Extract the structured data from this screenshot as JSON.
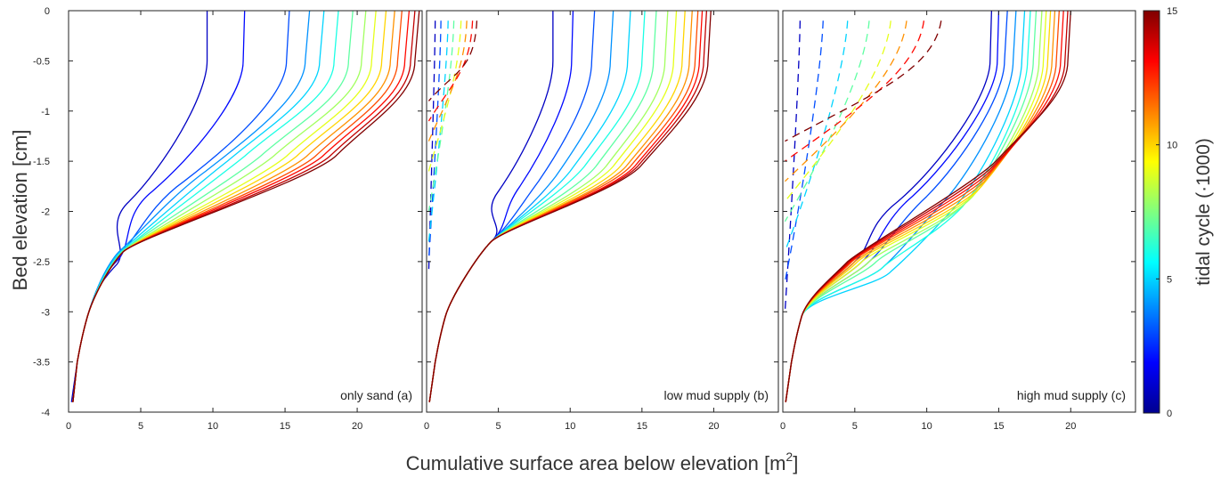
{
  "chart_data": {
    "type": "line",
    "xlabel": "Cumulative surface area below elevation [m",
    "xlabel_superscript": "2",
    "xlabel_close": "]",
    "ylabel": "Bed elevation [cm]",
    "xlim": [
      0,
      24.5
    ],
    "ylim": [
      -4,
      0
    ],
    "x_ticks": [
      0,
      5,
      10,
      15,
      20
    ],
    "y_ticks": [
      0,
      -0.5,
      -1,
      -1.5,
      -2,
      -2.5,
      -3,
      -3.5,
      -4
    ],
    "colorbar": {
      "label": "tidal cycle (·1000)",
      "range": [
        0,
        15
      ],
      "ticks": [
        0,
        5,
        10,
        15
      ],
      "colormap": "jet"
    },
    "panels": [
      {
        "label": "only sand (a)",
        "solid": [
          {
            "cycle": 1,
            "x_top": 9.6,
            "x_break": 9.6,
            "x_mid": 4.2,
            "y_mid": -1.9,
            "x_cross": 3.2,
            "y_cross": -2.55,
            "x_bottom": 0.2
          },
          {
            "cycle": 2,
            "x_top": 12.2,
            "x_break": 12.1,
            "x_mid": 5.8,
            "y_mid": -1.8,
            "x_cross": 3.3,
            "y_cross": -2.5,
            "x_bottom": 0.3
          },
          {
            "cycle": 3,
            "x_top": 15.3,
            "x_break": 15.1,
            "x_mid": 8.0,
            "y_mid": -1.7,
            "x_cross": 3.4,
            "y_cross": -2.45,
            "x_bottom": 0.3
          },
          {
            "cycle": 4,
            "x_top": 16.7,
            "x_break": 16.4,
            "x_mid": 9.5,
            "y_mid": -1.6,
            "x_cross": 3.5,
            "y_cross": -2.4,
            "x_bottom": 0.3
          },
          {
            "cycle": 5,
            "x_top": 17.7,
            "x_break": 17.4,
            "x_mid": 11.0,
            "y_mid": -1.5,
            "x_cross": 3.6,
            "y_cross": -2.4,
            "x_bottom": 0.3
          },
          {
            "cycle": 6,
            "x_top": 18.7,
            "x_break": 18.4,
            "x_mid": 12.2,
            "y_mid": -1.45,
            "x_cross": 3.7,
            "y_cross": -2.4,
            "x_bottom": 0.3
          },
          {
            "cycle": 7,
            "x_top": 19.7,
            "x_break": 19.4,
            "x_mid": 13.3,
            "y_mid": -1.45,
            "x_cross": 3.7,
            "y_cross": -2.4,
            "x_bottom": 0.3
          },
          {
            "cycle": 8,
            "x_top": 20.6,
            "x_break": 20.3,
            "x_mid": 14.2,
            "y_mid": -1.45,
            "x_cross": 3.8,
            "y_cross": -2.4,
            "x_bottom": 0.3
          },
          {
            "cycle": 9,
            "x_top": 21.3,
            "x_break": 21.0,
            "x_mid": 15.1,
            "y_mid": -1.45,
            "x_cross": 3.8,
            "y_cross": -2.4,
            "x_bottom": 0.3
          },
          {
            "cycle": 10,
            "x_top": 22.0,
            "x_break": 21.7,
            "x_mid": 15.8,
            "y_mid": -1.45,
            "x_cross": 3.8,
            "y_cross": -2.4,
            "x_bottom": 0.3
          },
          {
            "cycle": 11,
            "x_top": 22.6,
            "x_break": 22.3,
            "x_mid": 16.5,
            "y_mid": -1.45,
            "x_cross": 3.8,
            "y_cross": -2.4,
            "x_bottom": 0.3
          },
          {
            "cycle": 12,
            "x_top": 23.1,
            "x_break": 22.8,
            "x_mid": 17.1,
            "y_mid": -1.45,
            "x_cross": 3.8,
            "y_cross": -2.4,
            "x_bottom": 0.3
          },
          {
            "cycle": 13,
            "x_top": 23.6,
            "x_break": 23.3,
            "x_mid": 17.6,
            "y_mid": -1.45,
            "x_cross": 3.8,
            "y_cross": -2.4,
            "x_bottom": 0.3
          },
          {
            "cycle": 14,
            "x_top": 24.0,
            "x_break": 23.7,
            "x_mid": 18.1,
            "y_mid": -1.45,
            "x_cross": 3.8,
            "y_cross": -2.4,
            "x_bottom": 0.3
          },
          {
            "cycle": 15,
            "x_top": 24.3,
            "x_break": 24.0,
            "x_mid": 18.5,
            "y_mid": -1.45,
            "x_cross": 3.8,
            "y_cross": -2.4,
            "x_bottom": 0.3
          }
        ],
        "dashed": []
      },
      {
        "label": "low mud supply (b)",
        "solid": [
          {
            "cycle": 1,
            "x_top": 8.8,
            "x_break": 8.8,
            "x_mid": 5.0,
            "y_mid": -1.8,
            "x_cross": 4.5,
            "y_cross": -2.3,
            "x_bottom": 0.2
          },
          {
            "cycle": 2,
            "x_top": 10.2,
            "x_break": 10.1,
            "x_mid": 6.5,
            "y_mid": -1.75,
            "x_cross": 4.5,
            "y_cross": -2.3,
            "x_bottom": 0.2
          },
          {
            "cycle": 3,
            "x_top": 11.7,
            "x_break": 11.5,
            "x_mid": 7.8,
            "y_mid": -1.7,
            "x_cross": 4.5,
            "y_cross": -2.3,
            "x_bottom": 0.2
          },
          {
            "cycle": 4,
            "x_top": 13.0,
            "x_break": 12.8,
            "x_mid": 9.0,
            "y_mid": -1.65,
            "x_cross": 4.5,
            "y_cross": -2.3,
            "x_bottom": 0.2
          },
          {
            "cycle": 5,
            "x_top": 14.2,
            "x_break": 14.0,
            "x_mid": 10.0,
            "y_mid": -1.6,
            "x_cross": 4.5,
            "y_cross": -2.3,
            "x_bottom": 0.2
          },
          {
            "cycle": 6,
            "x_top": 15.2,
            "x_break": 15.0,
            "x_mid": 11.0,
            "y_mid": -1.55,
            "x_cross": 4.5,
            "y_cross": -2.3,
            "x_bottom": 0.2
          },
          {
            "cycle": 7,
            "x_top": 16.0,
            "x_break": 15.8,
            "x_mid": 11.8,
            "y_mid": -1.55,
            "x_cross": 4.5,
            "y_cross": -2.3,
            "x_bottom": 0.2
          },
          {
            "cycle": 8,
            "x_top": 16.8,
            "x_break": 16.6,
            "x_mid": 12.5,
            "y_mid": -1.55,
            "x_cross": 4.5,
            "y_cross": -2.3,
            "x_bottom": 0.2
          },
          {
            "cycle": 9,
            "x_top": 17.4,
            "x_break": 17.2,
            "x_mid": 13.0,
            "y_mid": -1.55,
            "x_cross": 4.5,
            "y_cross": -2.3,
            "x_bottom": 0.2
          },
          {
            "cycle": 10,
            "x_top": 18.0,
            "x_break": 17.8,
            "x_mid": 13.5,
            "y_mid": -1.55,
            "x_cross": 4.5,
            "y_cross": -2.3,
            "x_bottom": 0.2
          },
          {
            "cycle": 11,
            "x_top": 18.5,
            "x_break": 18.3,
            "x_mid": 13.9,
            "y_mid": -1.55,
            "x_cross": 4.5,
            "y_cross": -2.3,
            "x_bottom": 0.2
          },
          {
            "cycle": 12,
            "x_top": 18.9,
            "x_break": 18.7,
            "x_mid": 14.2,
            "y_mid": -1.55,
            "x_cross": 4.5,
            "y_cross": -2.3,
            "x_bottom": 0.2
          },
          {
            "cycle": 13,
            "x_top": 19.2,
            "x_break": 19.0,
            "x_mid": 14.5,
            "y_mid": -1.55,
            "x_cross": 4.5,
            "y_cross": -2.3,
            "x_bottom": 0.2
          },
          {
            "cycle": 14,
            "x_top": 19.5,
            "x_break": 19.3,
            "x_mid": 14.7,
            "y_mid": -1.55,
            "x_cross": 4.5,
            "y_cross": -2.3,
            "x_bottom": 0.2
          },
          {
            "cycle": 15,
            "x_top": 19.8,
            "x_break": 19.6,
            "x_mid": 14.9,
            "y_mid": -1.55,
            "x_cross": 4.5,
            "y_cross": -2.3,
            "x_bottom": 0.2
          }
        ],
        "dashed": [
          {
            "cycle": 1,
            "x_top": 0.6,
            "y_end": -2.6
          },
          {
            "cycle": 3,
            "x_top": 1.0,
            "y_end": -2.5
          },
          {
            "cycle": 5,
            "x_top": 1.5,
            "y_end": -2.3
          },
          {
            "cycle": 7,
            "x_top": 1.9,
            "y_end": -2.0
          },
          {
            "cycle": 9,
            "x_top": 2.4,
            "y_end": -1.6
          },
          {
            "cycle": 11,
            "x_top": 2.8,
            "y_end": -1.3
          },
          {
            "cycle": 13,
            "x_top": 3.2,
            "y_end": -1.1
          },
          {
            "cycle": 15,
            "x_top": 3.5,
            "y_end": -0.9
          }
        ]
      },
      {
        "label": "high mud supply (c)",
        "solid": [
          {
            "cycle": 1,
            "x_top": 14.5,
            "x_break": 14.4,
            "x_mid": 8.0,
            "y_mid": -1.9,
            "x_cross": 5.0,
            "y_cross": -2.5,
            "x_bottom": 0.2
          },
          {
            "cycle": 2,
            "x_top": 15.0,
            "x_break": 14.9,
            "x_mid": 9.0,
            "y_mid": -1.85,
            "x_cross": 5.5,
            "y_cross": -2.5,
            "x_bottom": 0.2
          },
          {
            "cycle": 3,
            "x_top": 15.6,
            "x_break": 15.4,
            "x_mid": 10.0,
            "y_mid": -1.85,
            "x_cross": 6.0,
            "y_cross": -2.5,
            "x_bottom": 0.2
          },
          {
            "cycle": 4,
            "x_top": 16.2,
            "x_break": 16.0,
            "x_mid": 11.2,
            "y_mid": -1.9,
            "x_cross": 7.0,
            "y_cross": -2.55,
            "x_bottom": 0.2
          },
          {
            "cycle": 5,
            "x_top": 16.8,
            "x_break": 16.6,
            "x_mid": 12.0,
            "y_mid": -1.95,
            "x_cross": 7.5,
            "y_cross": -2.6,
            "x_bottom": 0.2
          },
          {
            "cycle": 6,
            "x_top": 17.2,
            "x_break": 17.0,
            "x_mid": 12.5,
            "y_mid": -1.95,
            "x_cross": 7.0,
            "y_cross": -2.55,
            "x_bottom": 0.2
          },
          {
            "cycle": 7,
            "x_top": 17.6,
            "x_break": 17.4,
            "x_mid": 12.8,
            "y_mid": -1.9,
            "x_cross": 6.5,
            "y_cross": -2.5,
            "x_bottom": 0.2
          },
          {
            "cycle": 8,
            "x_top": 18.0,
            "x_break": 17.8,
            "x_mid": 13.2,
            "y_mid": -1.85,
            "x_cross": 6.0,
            "y_cross": -2.5,
            "x_bottom": 0.2
          },
          {
            "cycle": 9,
            "x_top": 18.3,
            "x_break": 18.1,
            "x_mid": 13.5,
            "y_mid": -1.8,
            "x_cross": 5.5,
            "y_cross": -2.5,
            "x_bottom": 0.2
          },
          {
            "cycle": 10,
            "x_top": 18.6,
            "x_break": 18.4,
            "x_mid": 13.8,
            "y_mid": -1.75,
            "x_cross": 5.2,
            "y_cross": -2.5,
            "x_bottom": 0.2
          },
          {
            "cycle": 11,
            "x_top": 18.9,
            "x_break": 18.7,
            "x_mid": 14.0,
            "y_mid": -1.7,
            "x_cross": 5.0,
            "y_cross": -2.5,
            "x_bottom": 0.2
          },
          {
            "cycle": 12,
            "x_top": 19.2,
            "x_break": 19.0,
            "x_mid": 14.2,
            "y_mid": -1.65,
            "x_cross": 4.8,
            "y_cross": -2.5,
            "x_bottom": 0.2
          },
          {
            "cycle": 13,
            "x_top": 19.5,
            "x_break": 19.3,
            "x_mid": 14.4,
            "y_mid": -1.6,
            "x_cross": 4.7,
            "y_cross": -2.5,
            "x_bottom": 0.2
          },
          {
            "cycle": 14,
            "x_top": 19.8,
            "x_break": 19.6,
            "x_mid": 14.6,
            "y_mid": -1.55,
            "x_cross": 4.6,
            "y_cross": -2.5,
            "x_bottom": 0.2
          },
          {
            "cycle": 15,
            "x_top": 20.0,
            "x_break": 19.8,
            "x_mid": 14.8,
            "y_mid": -1.5,
            "x_cross": 4.5,
            "y_cross": -2.5,
            "x_bottom": 0.2
          }
        ],
        "dashed": [
          {
            "cycle": 1,
            "x_top": 1.2,
            "y_end": -3.0
          },
          {
            "cycle": 3,
            "x_top": 2.8,
            "y_end": -2.7
          },
          {
            "cycle": 5,
            "x_top": 4.5,
            "y_end": -2.4
          },
          {
            "cycle": 7,
            "x_top": 6.0,
            "y_end": -2.1
          },
          {
            "cycle": 9,
            "x_top": 7.5,
            "y_end": -1.9
          },
          {
            "cycle": 11,
            "x_top": 8.6,
            "y_end": -1.7
          },
          {
            "cycle": 13,
            "x_top": 9.8,
            "y_end": -1.5
          },
          {
            "cycle": 15,
            "x_top": 11.0,
            "y_end": -1.3
          }
        ]
      }
    ]
  }
}
